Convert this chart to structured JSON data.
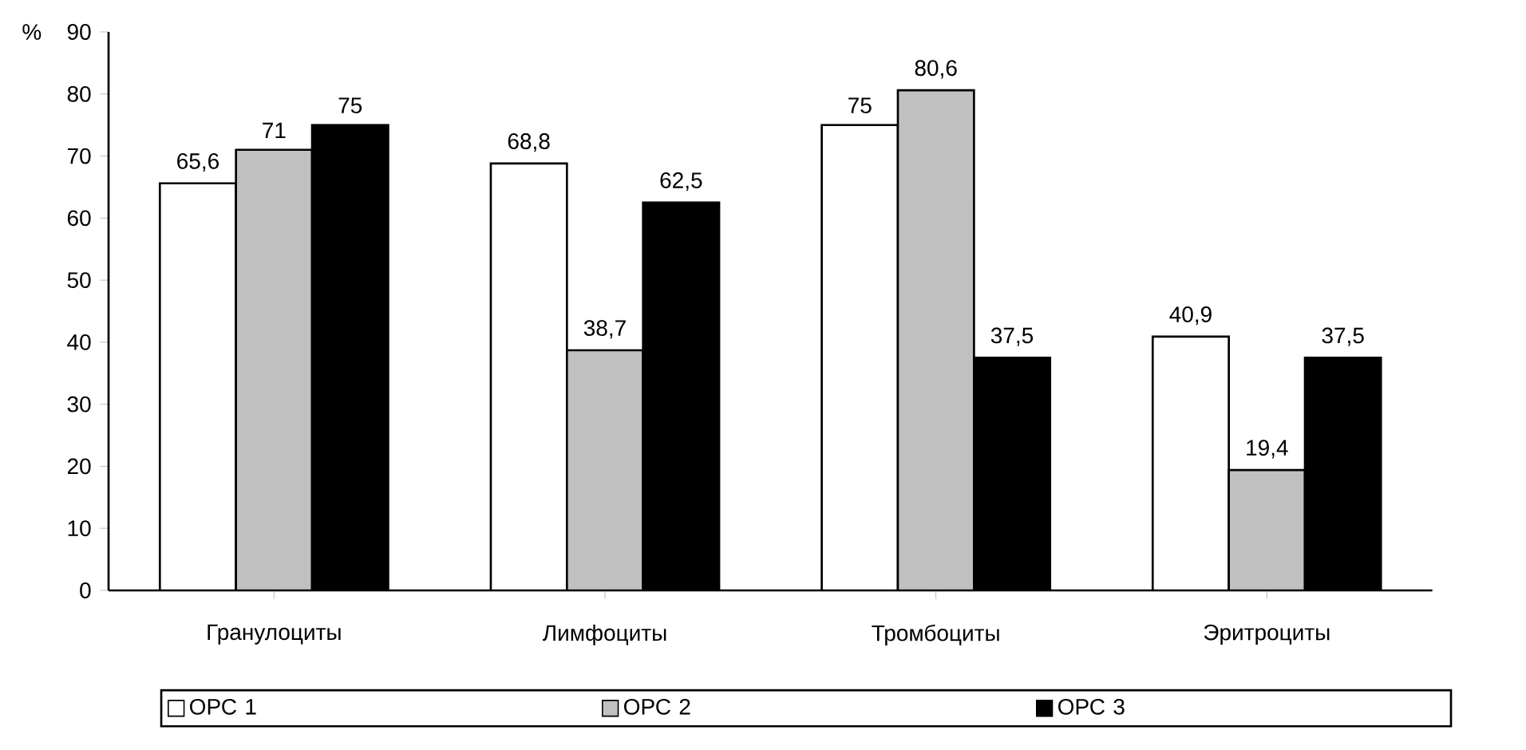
{
  "chart_data": {
    "type": "bar",
    "ylabel": "%",
    "categories": [
      "Гранулоциты",
      "Лимфоциты",
      "Тромбоциты",
      "Эритроциты"
    ],
    "series": [
      {
        "name": "ОРС 1",
        "color": "#ffffff",
        "values": [
          65.6,
          68.8,
          75,
          40.9
        ],
        "value_labels": [
          "65,6",
          "68,8",
          "75",
          "40,9"
        ]
      },
      {
        "name": "ОРС 2",
        "color": "#c0c0c0",
        "values": [
          71,
          38.7,
          80.6,
          19.4
        ],
        "value_labels": [
          "71",
          "38,7",
          "80,6",
          "19,4"
        ]
      },
      {
        "name": "ОРС 3",
        "color": "#000000",
        "values": [
          75,
          62.5,
          37.5,
          37.5
        ],
        "value_labels": [
          "75",
          "62,5",
          "37,5",
          "37,5"
        ]
      }
    ],
    "ylim": [
      0,
      90
    ],
    "yticks": [
      0,
      10,
      20,
      30,
      40,
      50,
      60,
      70,
      80,
      90
    ],
    "legend": "bottom"
  }
}
